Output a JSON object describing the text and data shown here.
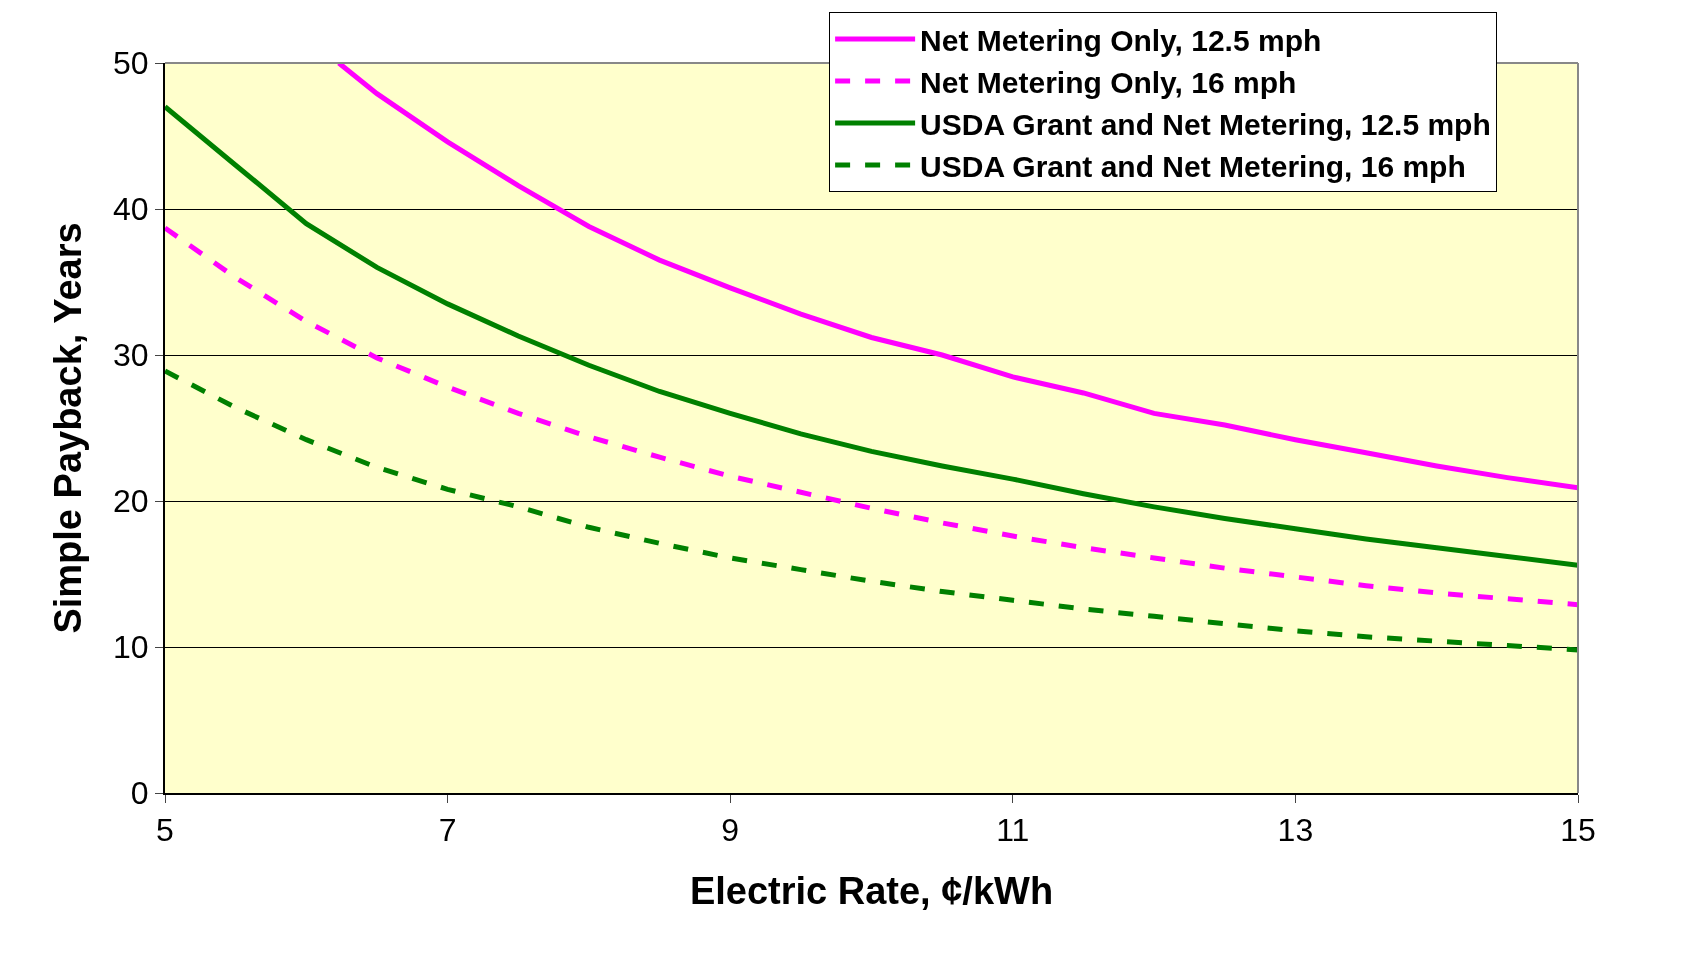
{
  "chart_data": {
    "type": "line",
    "xlabel": "Electric Rate, ¢/kWh",
    "ylabel": "Simple Payback, Years",
    "xlim": [
      5,
      15
    ],
    "xticks": [
      5,
      7,
      9,
      11,
      13,
      15
    ],
    "ylim": [
      0,
      50
    ],
    "yticks": [
      0,
      10,
      20,
      30,
      40,
      50
    ],
    "grid": "y",
    "legend": "top right",
    "marker": "none",
    "series": [
      {
        "name": "Net Metering Only, 12.5 mph",
        "color": "#ff00ff",
        "line_style": "solid",
        "x": [
          6.23,
          6.5,
          7,
          7.5,
          8,
          8.5,
          9,
          9.5,
          10,
          10.5,
          11,
          11.5,
          12,
          12.5,
          13,
          13.5,
          14,
          14.5,
          15
        ],
        "values": [
          50,
          47.9,
          44.6,
          41.6,
          38.8,
          36.5,
          34.6,
          32.8,
          31.2,
          30.0,
          28.5,
          27.4,
          26.0,
          25.2,
          24.2,
          23.3,
          22.4,
          21.6,
          20.9
        ]
      },
      {
        "name": "Net Metering Only, 16 mph",
        "color": "#ff00ff",
        "line_style": "dashed",
        "x": [
          5,
          5.5,
          6,
          6.5,
          7,
          7.5,
          8,
          8.5,
          9,
          9.5,
          10,
          10.5,
          11,
          11.5,
          12,
          12.5,
          13,
          13.5,
          14,
          14.5,
          15
        ],
        "values": [
          38.7,
          35.3,
          32.3,
          29.8,
          27.8,
          26,
          24.4,
          23,
          21.7,
          20.6,
          19.5,
          18.5,
          17.6,
          16.8,
          16.1,
          15.4,
          14.8,
          14.2,
          13.7,
          13.3,
          12.9
        ]
      },
      {
        "name": "USDA Grant and Net Metering, 12.5 mph",
        "color": "#008000",
        "line_style": "solid",
        "x": [
          5,
          5.5,
          6,
          6.5,
          7,
          7.5,
          8,
          8.5,
          9,
          9.5,
          10,
          10.5,
          11,
          11.5,
          12,
          12.5,
          13,
          13.5,
          14,
          14.5,
          15
        ],
        "values": [
          47,
          43,
          39,
          36,
          33.5,
          31.3,
          29.3,
          27.5,
          26,
          24.6,
          23.4,
          22.4,
          21.5,
          20.5,
          19.6,
          18.8,
          18.1,
          17.4,
          16.8,
          16.2,
          15.6
        ]
      },
      {
        "name": "USDA Grant and Net Metering, 16 mph",
        "color": "#008000",
        "line_style": "dashed",
        "x": [
          5,
          5.5,
          6,
          6.5,
          7,
          7.5,
          8,
          8.5,
          9,
          9.5,
          10,
          10.5,
          11,
          11.5,
          12,
          12.5,
          13,
          13.5,
          14,
          14.5,
          15
        ],
        "values": [
          28.9,
          26.4,
          24.2,
          22.3,
          20.8,
          19.6,
          18.2,
          17.1,
          16.1,
          15.3,
          14.5,
          13.8,
          13.2,
          12.6,
          12.1,
          11.6,
          11.1,
          10.7,
          10.4,
          10.1,
          9.8
        ]
      }
    ]
  }
}
